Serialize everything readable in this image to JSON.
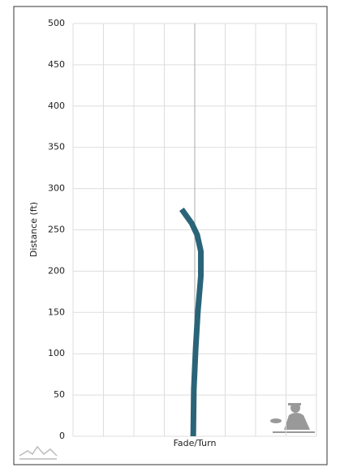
{
  "chart_data": {
    "type": "line",
    "y_label": "Distance (ft)",
    "x_label": "Fade/Turn",
    "x": [
      -0.05,
      -0.03,
      0.03,
      0.1,
      0.2,
      0.2,
      0.08,
      -0.1,
      -0.43
    ],
    "series": [
      {
        "color": "#2a6478",
        "values": [
          0,
          57,
          106,
          150,
          194,
          224,
          244,
          258,
          275
        ]
      }
    ],
    "xlim": [
      -4,
      4
    ],
    "xticks": [
      -4,
      -3,
      -2,
      -1,
      0,
      1,
      2,
      3,
      4
    ],
    "ylim": [
      0,
      500
    ],
    "yticks": [
      0,
      50,
      100,
      150,
      200,
      250,
      300,
      350,
      400,
      450,
      500
    ],
    "grid": true
  }
}
